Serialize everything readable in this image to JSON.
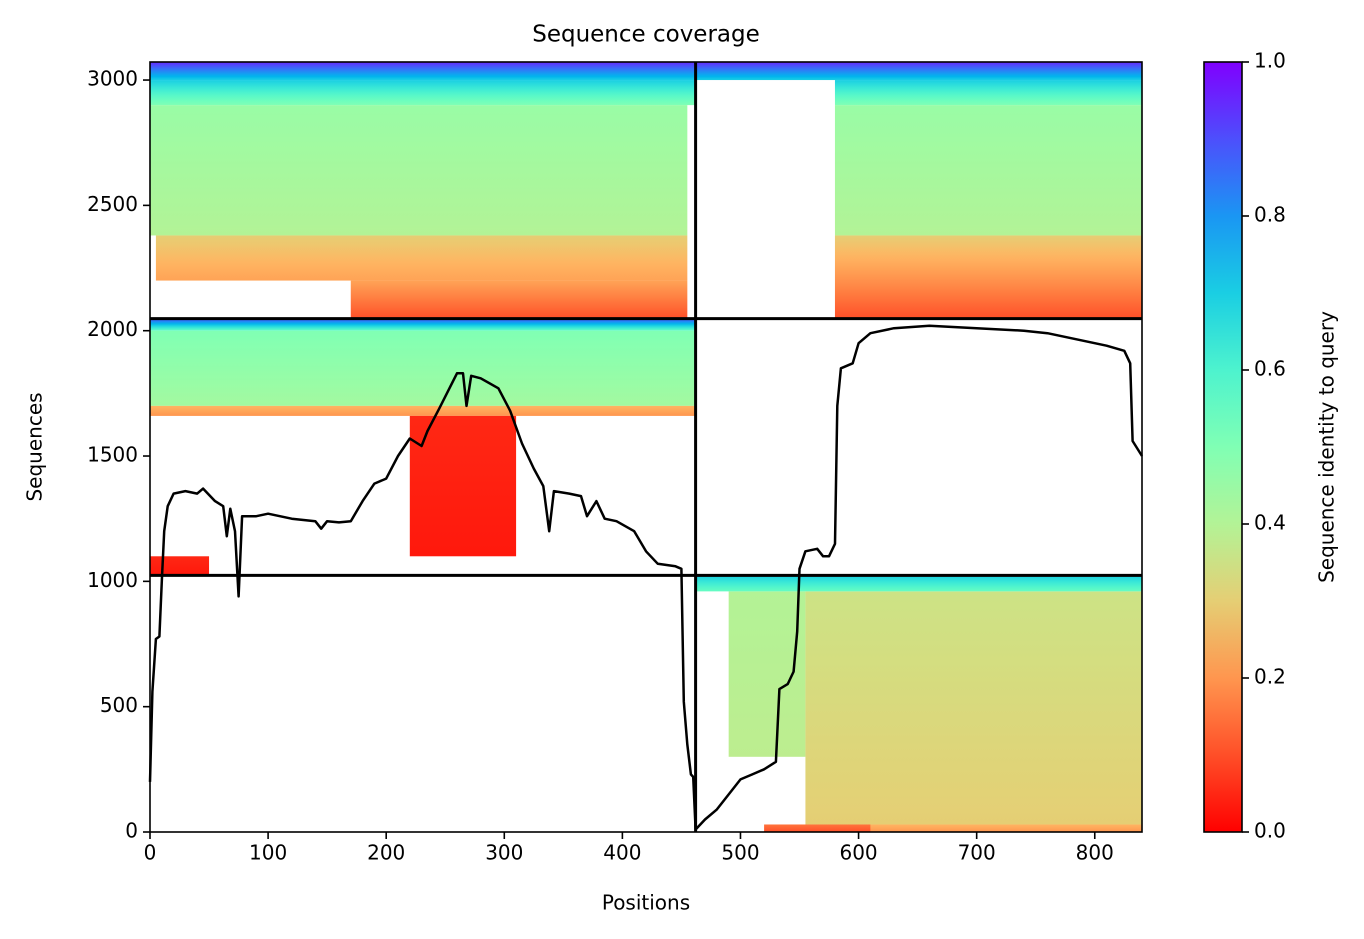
{
  "chart_data": {
    "type": "coverage",
    "title": "Sequence coverage",
    "x_label": "Positions",
    "y_label": "Sequences",
    "colorbar_label": "Sequence identity to query",
    "colormap": "rainbow_r",
    "clim": [
      0,
      1
    ],
    "cticks": [
      {
        "value": 0,
        "label": "0.0"
      },
      0.2,
      0.4,
      0.6,
      0.8,
      {
        "value": 1,
        "label": "1.0"
      }
    ],
    "xlim": [
      0,
      840
    ],
    "ylim": [
      0,
      3072
    ],
    "xticks": [
      0,
      100,
      200,
      300,
      400,
      500,
      600,
      700,
      800
    ],
    "yticks": [
      0,
      500,
      1000,
      1500,
      2000,
      2500,
      3000
    ],
    "dividers": {
      "x": [
        462
      ],
      "y": [
        1024,
        2048
      ],
      "color": "#000000"
    },
    "blocks": [
      {
        "x": [
          0,
          455
        ],
        "y": [
          2380,
          2900
        ],
        "identity": [
          0.4,
          0.45
        ]
      },
      {
        "x": [
          0,
          462
        ],
        "y": [
          2900,
          3000
        ],
        "identity": [
          0.5,
          0.7
        ]
      },
      {
        "x": [
          0,
          462
        ],
        "y": [
          3000,
          3072
        ],
        "identity": [
          0.7,
          0.95
        ]
      },
      {
        "x": [
          5,
          455
        ],
        "y": [
          2200,
          2380
        ],
        "identity": [
          0.22,
          0.3
        ]
      },
      {
        "x": [
          170,
          455
        ],
        "y": [
          2048,
          2200
        ],
        "identity": [
          0.1,
          0.22
        ]
      },
      {
        "x": [
          580,
          840
        ],
        "y": [
          2380,
          2900
        ],
        "identity": [
          0.4,
          0.45
        ]
      },
      {
        "x": [
          580,
          840
        ],
        "y": [
          2048,
          2380
        ],
        "identity": [
          0.1,
          0.3
        ]
      },
      {
        "x": [
          580,
          840
        ],
        "y": [
          2900,
          3000
        ],
        "identity": [
          0.5,
          0.7
        ]
      },
      {
        "x": [
          462,
          840
        ],
        "y": [
          3000,
          3072
        ],
        "identity": [
          0.7,
          0.95
        ]
      },
      {
        "x": [
          0,
          462
        ],
        "y": [
          1700,
          2000
        ],
        "identity": [
          0.43,
          0.5
        ]
      },
      {
        "x": [
          0,
          462
        ],
        "y": [
          2000,
          2048
        ],
        "identity": [
          0.55,
          0.9
        ]
      },
      {
        "x": [
          0,
          462
        ],
        "y": [
          1660,
          1700
        ],
        "identity": [
          0.2,
          0.25
        ]
      },
      {
        "x": [
          220,
          310
        ],
        "y": [
          1100,
          1660
        ],
        "identity": [
          0.03,
          0.05
        ]
      },
      {
        "x": [
          0,
          50
        ],
        "y": [
          1024,
          1100
        ],
        "identity": [
          0.03,
          0.05
        ]
      },
      {
        "x": [
          490,
          555
        ],
        "y": [
          300,
          960
        ],
        "identity": [
          0.38,
          0.4
        ]
      },
      {
        "x": [
          555,
          840
        ],
        "y": [
          30,
          960
        ],
        "identity": [
          0.3,
          0.35
        ]
      },
      {
        "x": [
          462,
          840
        ],
        "y": [
          960,
          1024
        ],
        "identity": [
          0.55,
          0.7
        ]
      },
      {
        "x": [
          555,
          840
        ],
        "y": [
          0,
          30
        ],
        "identity": [
          0.2,
          0.25
        ]
      },
      {
        "x": [
          520,
          610
        ],
        "y": [
          0,
          30
        ],
        "identity": [
          0.1,
          0.15
        ]
      }
    ],
    "coverage": {
      "color": "#000000",
      "x": [
        0,
        2,
        5,
        8,
        10,
        12,
        15,
        20,
        30,
        40,
        45,
        55,
        62,
        65,
        68,
        72,
        75,
        78,
        90,
        100,
        120,
        140,
        145,
        150,
        160,
        170,
        180,
        190,
        200,
        210,
        220,
        230,
        235,
        245,
        260,
        265,
        268,
        272,
        280,
        295,
        305,
        315,
        325,
        333,
        338,
        342,
        355,
        365,
        370,
        378,
        385,
        395,
        410,
        420,
        430,
        445,
        450,
        452,
        455,
        458,
        460,
        462,
        470,
        480,
        490,
        500,
        510,
        520,
        530,
        533,
        540,
        545,
        548,
        550,
        555,
        565,
        570,
        575,
        580,
        582,
        585,
        595,
        600,
        605,
        610,
        630,
        660,
        700,
        740,
        760,
        790,
        810,
        825,
        830,
        832,
        840
      ],
      "y": [
        200,
        560,
        770,
        780,
        1000,
        1200,
        1300,
        1350,
        1360,
        1350,
        1370,
        1320,
        1300,
        1180,
        1290,
        1200,
        940,
        1260,
        1260,
        1270,
        1250,
        1240,
        1210,
        1240,
        1235,
        1240,
        1320,
        1390,
        1410,
        1500,
        1570,
        1540,
        1600,
        1690,
        1830,
        1830,
        1700,
        1820,
        1810,
        1770,
        1680,
        1550,
        1450,
        1380,
        1200,
        1360,
        1350,
        1340,
        1260,
        1320,
        1250,
        1240,
        1200,
        1120,
        1070,
        1060,
        1050,
        520,
        350,
        230,
        220,
        10,
        50,
        90,
        150,
        210,
        230,
        250,
        280,
        570,
        590,
        640,
        800,
        1050,
        1120,
        1130,
        1100,
        1100,
        1150,
        1700,
        1850,
        1870,
        1950,
        1970,
        1990,
        2010,
        2020,
        2010,
        2000,
        1990,
        1960,
        1940,
        1920,
        1870,
        1560,
        1500
      ]
    }
  }
}
